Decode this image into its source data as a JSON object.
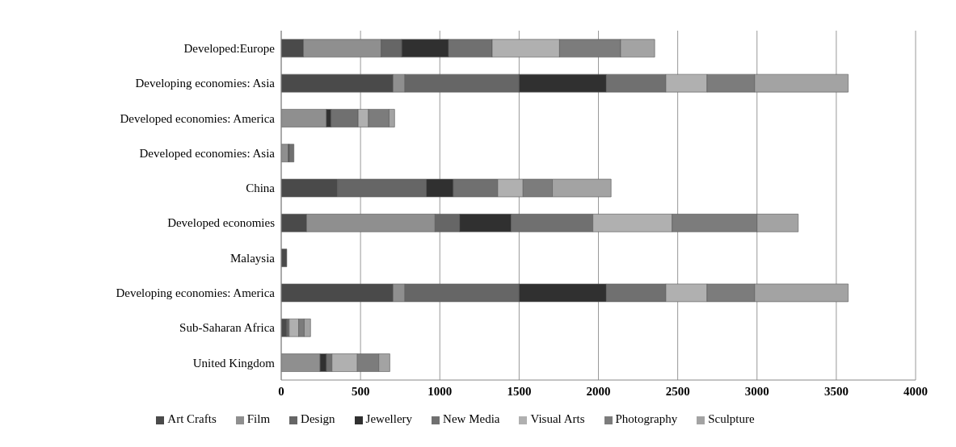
{
  "chart_data": {
    "type": "bar",
    "orientation": "horizontal",
    "stacked": true,
    "categories": [
      "Developed:Europe",
      "Developing economies: Asia",
      "Developed economies: America",
      "Developed economies: Asia",
      "China",
      "Developed economies",
      "Malaysia",
      "Developing economies: America",
      "Sub-Saharan Africa",
      "United Kingdom"
    ],
    "series": [
      {
        "name": "Art Crafts",
        "color": "#4a4a4a",
        "values": [
          140,
          705,
          0,
          0,
          355,
          160,
          35,
          705,
          35,
          0
        ]
      },
      {
        "name": "Film",
        "color": "#8f8f8f",
        "values": [
          490,
          75,
          285,
          45,
          0,
          810,
          0,
          75,
          0,
          245
        ]
      },
      {
        "name": "Design",
        "color": "#666666",
        "values": [
          130,
          720,
          0,
          0,
          560,
          155,
          0,
          720,
          15,
          0
        ]
      },
      {
        "name": "Jewellery",
        "color": "#303030",
        "values": [
          295,
          550,
          30,
          5,
          170,
          325,
          0,
          550,
          0,
          40
        ]
      },
      {
        "name": "New Media",
        "color": "#707070",
        "values": [
          275,
          375,
          170,
          30,
          280,
          515,
          0,
          375,
          0,
          35
        ]
      },
      {
        "name": "Visual Arts",
        "color": "#b0b0b0",
        "values": [
          425,
          260,
          65,
          0,
          160,
          500,
          0,
          260,
          60,
          160
        ]
      },
      {
        "name": "Photography",
        "color": "#7c7c7c",
        "values": [
          385,
          300,
          130,
          0,
          185,
          535,
          0,
          300,
          35,
          135
        ]
      },
      {
        "name": "Sculpture",
        "color": "#a3a3a3",
        "values": [
          215,
          590,
          35,
          0,
          370,
          260,
          0,
          590,
          40,
          70
        ]
      }
    ],
    "xlim": [
      0,
      4000
    ],
    "xticks": [
      0,
      500,
      1000,
      1500,
      2000,
      2500,
      3000,
      3500,
      4000
    ],
    "grid": "x",
    "legend": "bottom"
  }
}
